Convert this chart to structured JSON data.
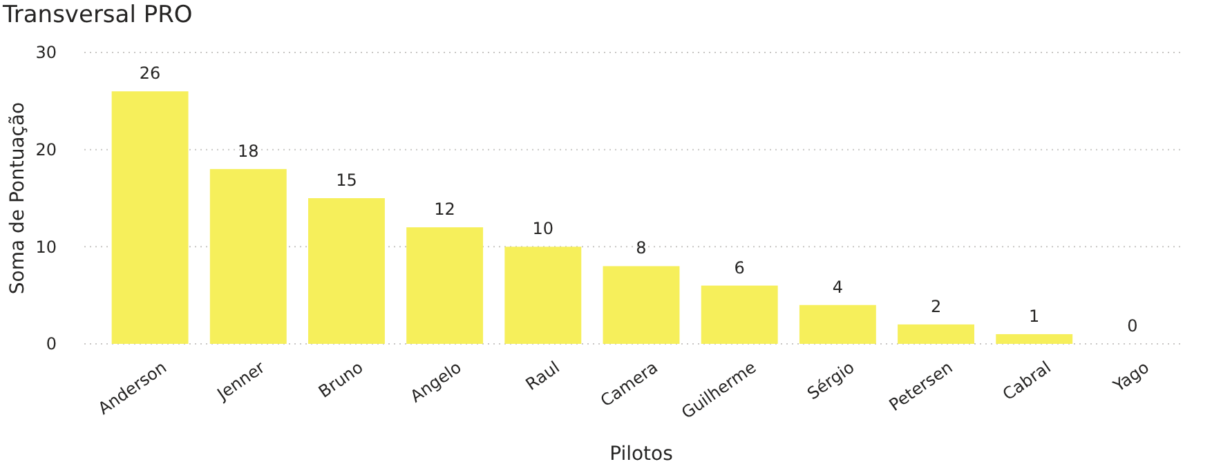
{
  "chart_data": {
    "type": "bar",
    "title": "Transversal PRO",
    "xlabel": "Pilotos",
    "ylabel": "Soma de Pontuação",
    "categories": [
      "Anderson",
      "Jenner",
      "Bruno",
      "Angelo",
      "Raul",
      "Camera",
      "Guilherme",
      "Sérgio",
      "Petersen",
      "Cabral",
      "Yago"
    ],
    "values": [
      26,
      18,
      15,
      12,
      10,
      8,
      6,
      4,
      2,
      1,
      0
    ],
    "color": "#f6ef5b",
    "ylim": [
      0,
      30
    ],
    "yticks": [
      0,
      10,
      20,
      30
    ],
    "grid": "y",
    "data_labels": true
  }
}
